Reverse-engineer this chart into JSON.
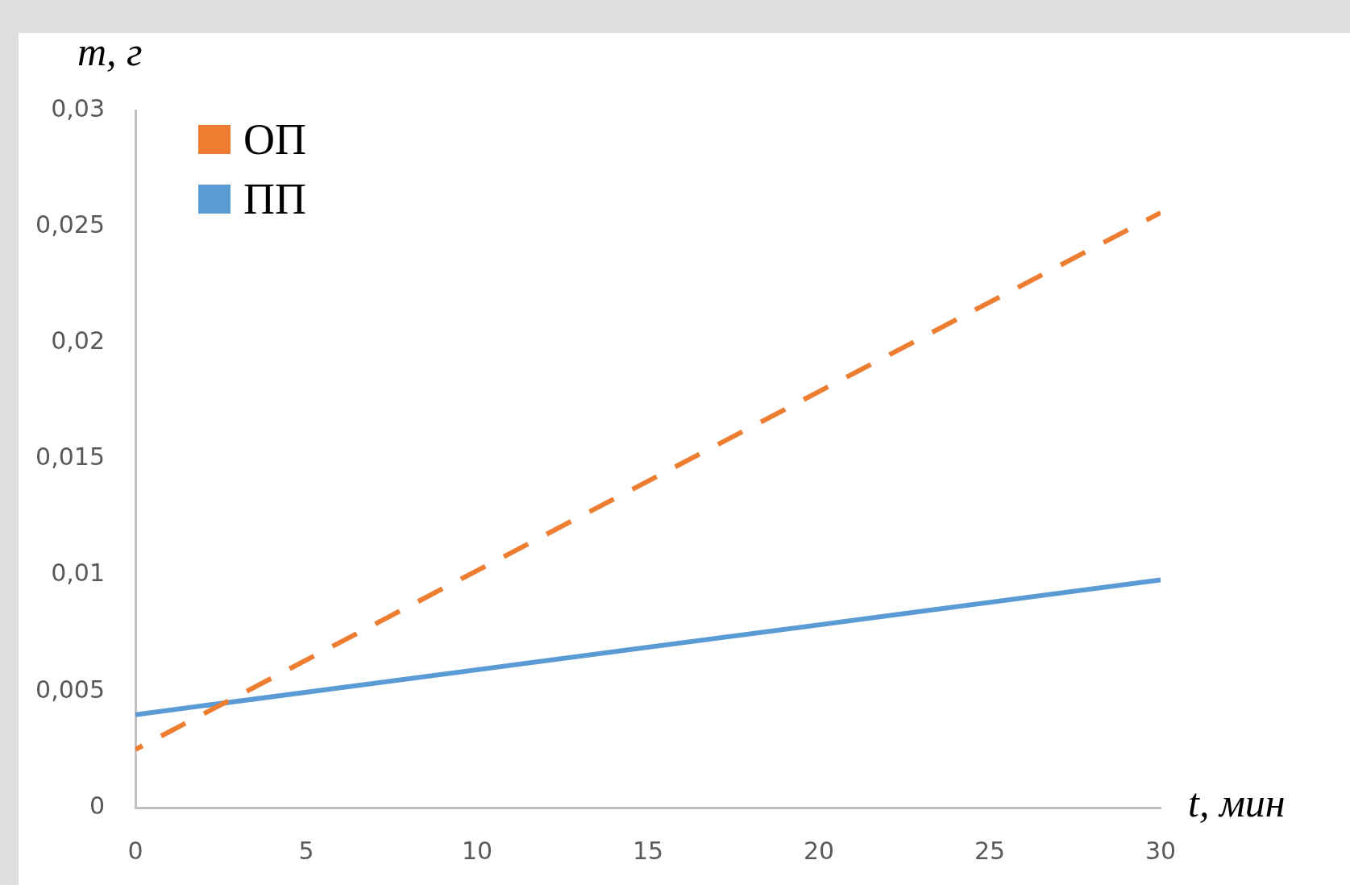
{
  "chart_data": {
    "type": "line",
    "xlabel": "t, мин",
    "ylabel": "m, г",
    "x": [
      0,
      30
    ],
    "series": [
      {
        "name": "ОП",
        "color": "#ed7d31",
        "values": [
          0.0025,
          0.0256
        ],
        "line_style": "dashed"
      },
      {
        "name": "ПП",
        "color": "#5b9bd5",
        "values": [
          0.004,
          0.0098
        ],
        "line_style": "solid"
      }
    ],
    "xlim": [
      0,
      30
    ],
    "xticks": [
      0,
      5,
      10,
      15,
      20,
      25,
      30
    ],
    "ylim": [
      0,
      0.03
    ],
    "yticks": [
      {
        "value": 0,
        "label": "0"
      },
      {
        "value": 0.005,
        "label": "0,005"
      },
      {
        "value": 0.01,
        "label": "0,01"
      },
      {
        "value": 0.015,
        "label": "0,015"
      },
      {
        "value": 0.02,
        "label": "0,02"
      },
      {
        "value": 0.025,
        "label": "0,025"
      },
      {
        "value": 0.03,
        "label": "0,03"
      }
    ],
    "grid": false,
    "legend": "top left",
    "marker": "none"
  }
}
